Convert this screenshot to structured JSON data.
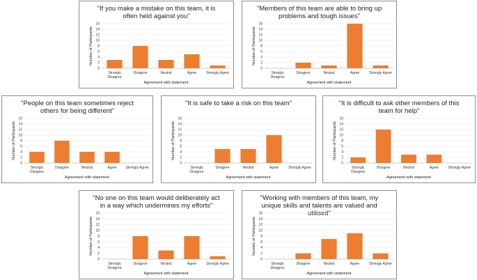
{
  "chart_data": [
    {
      "type": "bar",
      "title": "\"If you make a mistake on this team, it is often held against you\"",
      "categories": [
        "Strongly Disagree",
        "Disagree",
        "Neutral",
        "Agree",
        "Strongly Agree"
      ],
      "values": [
        3,
        8,
        3,
        5,
        1
      ],
      "xlabel": "Agreement with statement",
      "ylabel": "Number of Participants",
      "yticks": [
        0,
        2,
        4,
        6,
        8,
        10,
        12,
        14,
        16
      ],
      "ylim": [
        0,
        16
      ],
      "grid": true,
      "bar_color": "#ed7d31"
    },
    {
      "type": "bar",
      "title": "\"Members of this team are able to bring up problems and tough issues\"",
      "categories": [
        "Strongly Disagree",
        "Disagree",
        "Neutral",
        "Agree",
        "Strongly Agree"
      ],
      "values": [
        0,
        2,
        1,
        16,
        1
      ],
      "xlabel": "Agreement with statement",
      "ylabel": "Number of Participants",
      "yticks": [
        0,
        2,
        4,
        6,
        8,
        10,
        12,
        14,
        16
      ],
      "ylim": [
        0,
        16
      ],
      "grid": true,
      "bar_color": "#ed7d31"
    },
    {
      "type": "bar",
      "title": "\"People on this team sometimes reject others for being different\"",
      "categories": [
        "Strongly Disagree",
        "Disagree",
        "Neutral",
        "Agree",
        "Strongly Agree"
      ],
      "values": [
        4,
        8,
        4,
        4,
        0
      ],
      "xlabel": "Agreement with statement",
      "ylabel": "Number of Participants",
      "yticks": [
        0,
        2,
        4,
        6,
        8,
        10,
        12,
        14,
        16
      ],
      "ylim": [
        0,
        16
      ],
      "grid": true,
      "bar_color": "#ed7d31"
    },
    {
      "type": "bar",
      "title": "\"It is safe to take a risk on this team\"",
      "categories": [
        "Strongly Disagree",
        "Disagree",
        "Neutral",
        "Agree",
        "Strongly Agree"
      ],
      "values": [
        0,
        5,
        5,
        10,
        0
      ],
      "xlabel": "Agreement with statement",
      "ylabel": "Number of Participants",
      "yticks": [
        0,
        2,
        4,
        6,
        8,
        10,
        12,
        14,
        16
      ],
      "ylim": [
        0,
        16
      ],
      "grid": true,
      "bar_color": "#ed7d31"
    },
    {
      "type": "bar",
      "title": "\"It is difficult to ask other members of this team for help\"",
      "categories": [
        "Strongly Disagree",
        "Disagree",
        "Neutral",
        "Agree",
        "Strongly Agree"
      ],
      "values": [
        2,
        12,
        3,
        3,
        0
      ],
      "xlabel": "Agreement with statement",
      "ylabel": "Number of Participants",
      "yticks": [
        0,
        2,
        4,
        6,
        8,
        10,
        12,
        14,
        16
      ],
      "ylim": [
        0,
        16
      ],
      "grid": true,
      "bar_color": "#ed7d31"
    },
    {
      "type": "bar",
      "title": "\"No one on this team would deliberately act in a way which undermines my efforts\"",
      "categories": [
        "Strongly Disagree",
        "Disagree",
        "Neutral",
        "Agree",
        "Strongly Agree"
      ],
      "values": [
        0,
        8,
        3,
        8,
        1
      ],
      "xlabel": "Agreement with statement",
      "ylabel": "Number of Participants",
      "yticks": [
        0,
        2,
        4,
        6,
        8,
        10,
        12,
        14,
        16
      ],
      "ylim": [
        0,
        16
      ],
      "grid": true,
      "bar_color": "#ed7d31"
    },
    {
      "type": "bar",
      "title": "\"Working with members of this team, my unique skills and talents are valued and utilised\"",
      "categories": [
        "Strongly Disagree",
        "Disagree",
        "Neutral",
        "Agree",
        "Strongly Agree"
      ],
      "values": [
        0,
        2,
        7,
        9,
        2
      ],
      "xlabel": "Agreement with statement",
      "ylabel": "Number of Participants",
      "yticks": [
        0,
        2,
        4,
        6,
        8,
        10,
        12,
        14,
        16
      ],
      "ylim": [
        0,
        16
      ],
      "grid": true,
      "bar_color": "#ed7d31"
    }
  ]
}
